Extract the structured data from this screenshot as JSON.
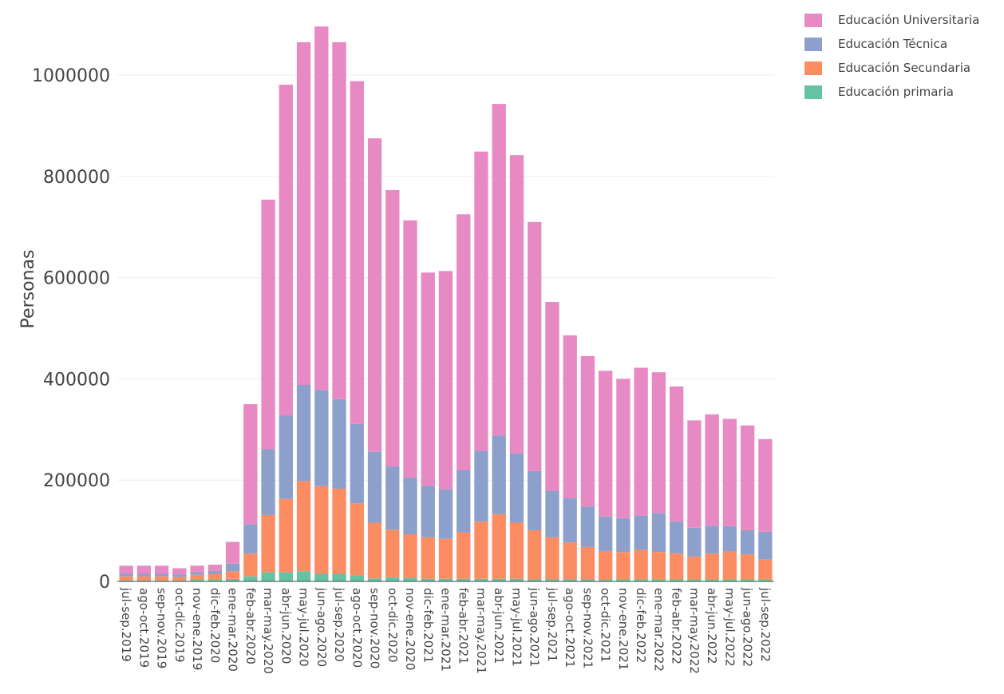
{
  "chart_data": {
    "type": "bar",
    "stacked": true,
    "ylabel": "Personas",
    "xlabel": "",
    "ylim": [
      0,
      1100000
    ],
    "yticks": [
      0,
      200000,
      400000,
      600000,
      800000,
      1000000
    ],
    "ytick_labels": [
      "0",
      "200000",
      "400000",
      "600000",
      "800000",
      "1000000"
    ],
    "grid": true,
    "legend_position": "top-right",
    "categories": [
      "jul-sep.2019",
      "ago-oct.2019",
      "sep-nov.2019",
      "oct-dic.2019",
      "nov-ene.2019",
      "dic-feb.2020",
      "ene-mar.2020",
      "feb-abr.2020",
      "mar-may.2020",
      "abr-jun.2020",
      "may-jul.2020",
      "jun-ago.2020",
      "jul-sep.2020",
      "ago-oct.2020",
      "sep-nov.2020",
      "oct-dic.2020",
      "nov-ene.2020",
      "dic-feb.2021",
      "ene-mar.2021",
      "feb-abr.2021",
      "mar-may.2021",
      "abr-jun.2021",
      "may-jul.2021",
      "jun-ago.2021",
      "jul-sep.2021",
      "ago-oct.2021",
      "sep-nov.2021",
      "oct-dic.2021",
      "nov-ene.2021",
      "dic-feb.2022",
      "ene-mar.2022",
      "feb-abr.2022",
      "mar-may.2022",
      "abr-jun.2022",
      "may-jul.2022",
      "jun-ago.2022",
      "jul-sep.2022"
    ],
    "series": [
      {
        "name": "Educación primaria",
        "color": "#66c2a5",
        "values": [
          2000,
          2000,
          2000,
          2000,
          3000,
          3000,
          5000,
          10000,
          18000,
          18000,
          20000,
          15000,
          15000,
          12000,
          6000,
          8000,
          7000,
          5000,
          5000,
          5000,
          5000,
          5000,
          5000,
          4000,
          4000,
          4000,
          4000,
          3000,
          3000,
          3000,
          3000,
          3000,
          3000,
          3000,
          3000,
          3000,
          3000
        ]
      },
      {
        "name": "Educación Secundaria",
        "color": "#fc8d62",
        "values": [
          8000,
          8000,
          8000,
          7000,
          10000,
          12000,
          15000,
          45000,
          113000,
          145000,
          178000,
          173000,
          168000,
          142000,
          110000,
          94000,
          86000,
          82000,
          79000,
          92000,
          113000,
          128000,
          111000,
          97000,
          83000,
          73000,
          64000,
          57000,
          55000,
          59000,
          55000,
          52000,
          46000,
          52000,
          56000,
          50000,
          40000
        ]
      },
      {
        "name": "Educación Técnica",
        "color": "#8da0cb",
        "values": [
          5000,
          5000,
          5000,
          5000,
          5000,
          6000,
          15000,
          58000,
          130000,
          165000,
          190000,
          190000,
          177000,
          157000,
          140000,
          125000,
          112000,
          102000,
          98000,
          123000,
          140000,
          155000,
          137000,
          117000,
          92000,
          87000,
          80000,
          68000,
          67000,
          68000,
          77000,
          63000,
          57000,
          55000,
          50000,
          48000,
          55000
        ]
      },
      {
        "name": "Educación Universitaria",
        "color": "#e78ac3",
        "values": [
          16000,
          16000,
          16000,
          12000,
          13000,
          12000,
          43000,
          237000,
          493000,
          653000,
          677000,
          718000,
          705000,
          677000,
          619000,
          546000,
          508000,
          421000,
          431000,
          505000,
          591000,
          655000,
          589000,
          492000,
          373000,
          322000,
          297000,
          288000,
          275000,
          292000,
          278000,
          267000,
          212000,
          220000,
          212000,
          207000,
          183000
        ]
      }
    ]
  },
  "legend": {
    "items": [
      {
        "label": "Educación Universitaria",
        "color": "#e78ac3"
      },
      {
        "label": "Educación Técnica",
        "color": "#8da0cb"
      },
      {
        "label": "Educación Secundaria",
        "color": "#fc8d62"
      },
      {
        "label": "Educación primaria",
        "color": "#66c2a5"
      }
    ]
  }
}
